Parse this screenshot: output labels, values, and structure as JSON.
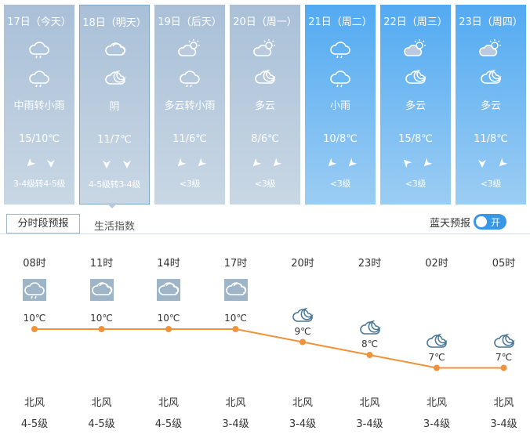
{
  "days": [
    {
      "date": "17日",
      "label": "（今天）",
      "icon_day": "cloud-rain-icon",
      "icon_night": "cloud-rain-icon",
      "condition": "中雨转小雨",
      "temp": "15/10℃",
      "wind_icons": [
        "southwest-arrow-icon",
        "south-arrow-icon"
      ],
      "level": "3-4级转4-5级",
      "style": "grey"
    },
    {
      "date": "18日",
      "label": "（明天）",
      "icon_day": "cloudy-icon",
      "icon_night": "cloud-moon-icon",
      "condition": "阴",
      "temp": "11/7℃",
      "wind_icons": [
        "south-arrow-icon",
        "south-arrow-icon"
      ],
      "level": "4-5级转3-4级",
      "style": "grey",
      "selected": true
    },
    {
      "date": "19日",
      "label": "（后天）",
      "icon_day": "partly-cloudy-icon",
      "icon_night": "cloud-rain-icon",
      "condition": "多云转小雨",
      "temp": "11/6℃",
      "wind_icons": [
        "southwest-arrow-icon",
        "southwest-arrow-icon"
      ],
      "level": "<3级",
      "style": "grey"
    },
    {
      "date": "20日",
      "label": "（周一）",
      "icon_day": "partly-cloudy-icon",
      "icon_night": "cloud-moon-icon",
      "condition": "多云",
      "temp": "8/6℃",
      "wind_icons": [
        "southwest-arrow-icon",
        "southwest-arrow-icon"
      ],
      "level": "<3级",
      "style": "grey"
    },
    {
      "date": "21日",
      "label": "（周二）",
      "icon_day": "cloud-rain-icon",
      "icon_night": "cloud-rain-icon",
      "condition": "小雨",
      "temp": "10/8℃",
      "wind_icons": [
        "southwest-arrow-icon",
        "southwest-arrow-icon"
      ],
      "level": "<3级",
      "style": "blue"
    },
    {
      "date": "22日",
      "label": "（周三）",
      "icon_day": "partly-cloudy-icon",
      "icon_night": "cloud-moon-icon",
      "condition": "多云",
      "temp": "15/8℃",
      "wind_icons": [
        "northwest-arrow-icon",
        "southwest-arrow-icon"
      ],
      "level": "<3级",
      "style": "blue"
    },
    {
      "date": "23日",
      "label": "（周四）",
      "icon_day": "partly-cloudy-icon",
      "icon_night": "cloud-moon-icon",
      "condition": "多云",
      "temp": "11/8℃",
      "wind_icons": [
        "south-arrow-icon",
        "southwest-arrow-icon"
      ],
      "level": "<3级",
      "style": "blue"
    }
  ],
  "tabs": {
    "hourly": "分时段预报",
    "life": "生活指数"
  },
  "toggle": {
    "label": "蓝天预报",
    "state": "开"
  },
  "hourly": [
    {
      "time": "08时",
      "icon": "cloud-rain-icon",
      "temp": 10,
      "temp_label": "10℃",
      "wind": "北风",
      "level": "4-5级"
    },
    {
      "time": "11时",
      "icon": "cloudy-icon",
      "temp": 10,
      "temp_label": "10℃",
      "wind": "北风",
      "level": "4-5级"
    },
    {
      "time": "14时",
      "icon": "cloudy-icon",
      "temp": 10,
      "temp_label": "10℃",
      "wind": "北风",
      "level": "4-5级"
    },
    {
      "time": "17时",
      "icon": "cloudy-icon",
      "temp": 10,
      "temp_label": "10℃",
      "wind": "北风",
      "level": "3-4级"
    },
    {
      "time": "20时",
      "icon": "cloud-moon-icon",
      "temp": 9,
      "temp_label": "9℃",
      "wind": "北风",
      "level": "3-4级"
    },
    {
      "time": "23时",
      "icon": "cloud-moon-icon",
      "temp": 8,
      "temp_label": "8℃",
      "wind": "北风",
      "level": "3-4级"
    },
    {
      "time": "02时",
      "icon": "cloud-moon-icon",
      "temp": 7,
      "temp_label": "7℃",
      "wind": "北风",
      "level": "3-4级"
    },
    {
      "time": "05时",
      "icon": "cloud-moon-icon",
      "temp": 7,
      "temp_label": "7℃",
      "wind": "北风",
      "level": "3-4级"
    }
  ],
  "colors": {
    "line": "#f0923a",
    "grey_day": "#a9c0d8",
    "blue_day": "#52aaf2",
    "icon_box": "#9eb4c7",
    "toggle": "#3a96e6"
  }
}
